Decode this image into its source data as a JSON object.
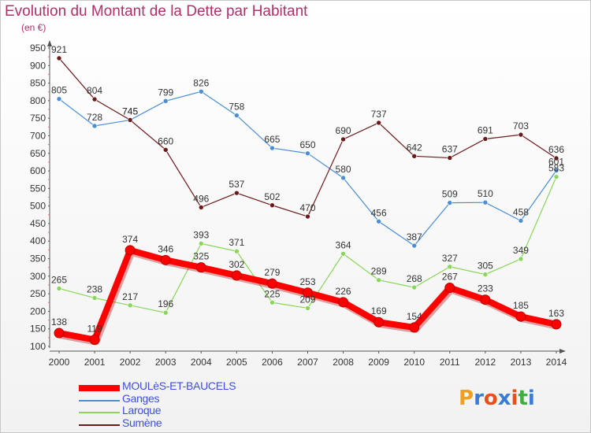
{
  "header": {
    "title": "Evolution du Montant de la Dette par Habitant",
    "unit": "(en €)"
  },
  "logo": {
    "text": "Proxiti"
  },
  "chart_data": {
    "type": "line",
    "title": "Evolution du Montant de la Dette par Habitant",
    "ylabel": "(en €)",
    "xlabel": "",
    "x": [
      "2000",
      "2001",
      "2002",
      "2003",
      "2004",
      "2005",
      "2006",
      "2007",
      "2008",
      "2009",
      "2010",
      "2011",
      "2012",
      "2013",
      "2014"
    ],
    "ylim": [
      100,
      950
    ],
    "yticks": [
      100,
      150,
      200,
      250,
      300,
      350,
      400,
      450,
      500,
      550,
      600,
      650,
      700,
      750,
      800,
      850,
      900,
      950
    ],
    "grid": false,
    "legend": "bottom-left",
    "series": [
      {
        "name": "MOULèS-ET-BAUCELS",
        "color": "#ff0000",
        "highlight": true,
        "values": [
          138,
          119,
          374,
          346,
          325,
          302,
          279,
          253,
          226,
          169,
          154,
          267,
          233,
          185,
          163
        ]
      },
      {
        "name": "Ganges",
        "color": "#4a8ed4",
        "highlight": false,
        "values": [
          805,
          728,
          745,
          799,
          826,
          758,
          665,
          650,
          580,
          456,
          387,
          509,
          510,
          458,
          601
        ]
      },
      {
        "name": "Laroque",
        "color": "#88d65a",
        "highlight": false,
        "values": [
          265,
          238,
          217,
          196,
          393,
          371,
          225,
          209,
          364,
          289,
          268,
          327,
          305,
          349,
          583
        ]
      },
      {
        "name": "Sumène",
        "color": "#6b1a1a",
        "highlight": false,
        "values": [
          921,
          804,
          745,
          660,
          496,
          537,
          502,
          470,
          690,
          737,
          642,
          637,
          691,
          703,
          636
        ]
      }
    ]
  }
}
